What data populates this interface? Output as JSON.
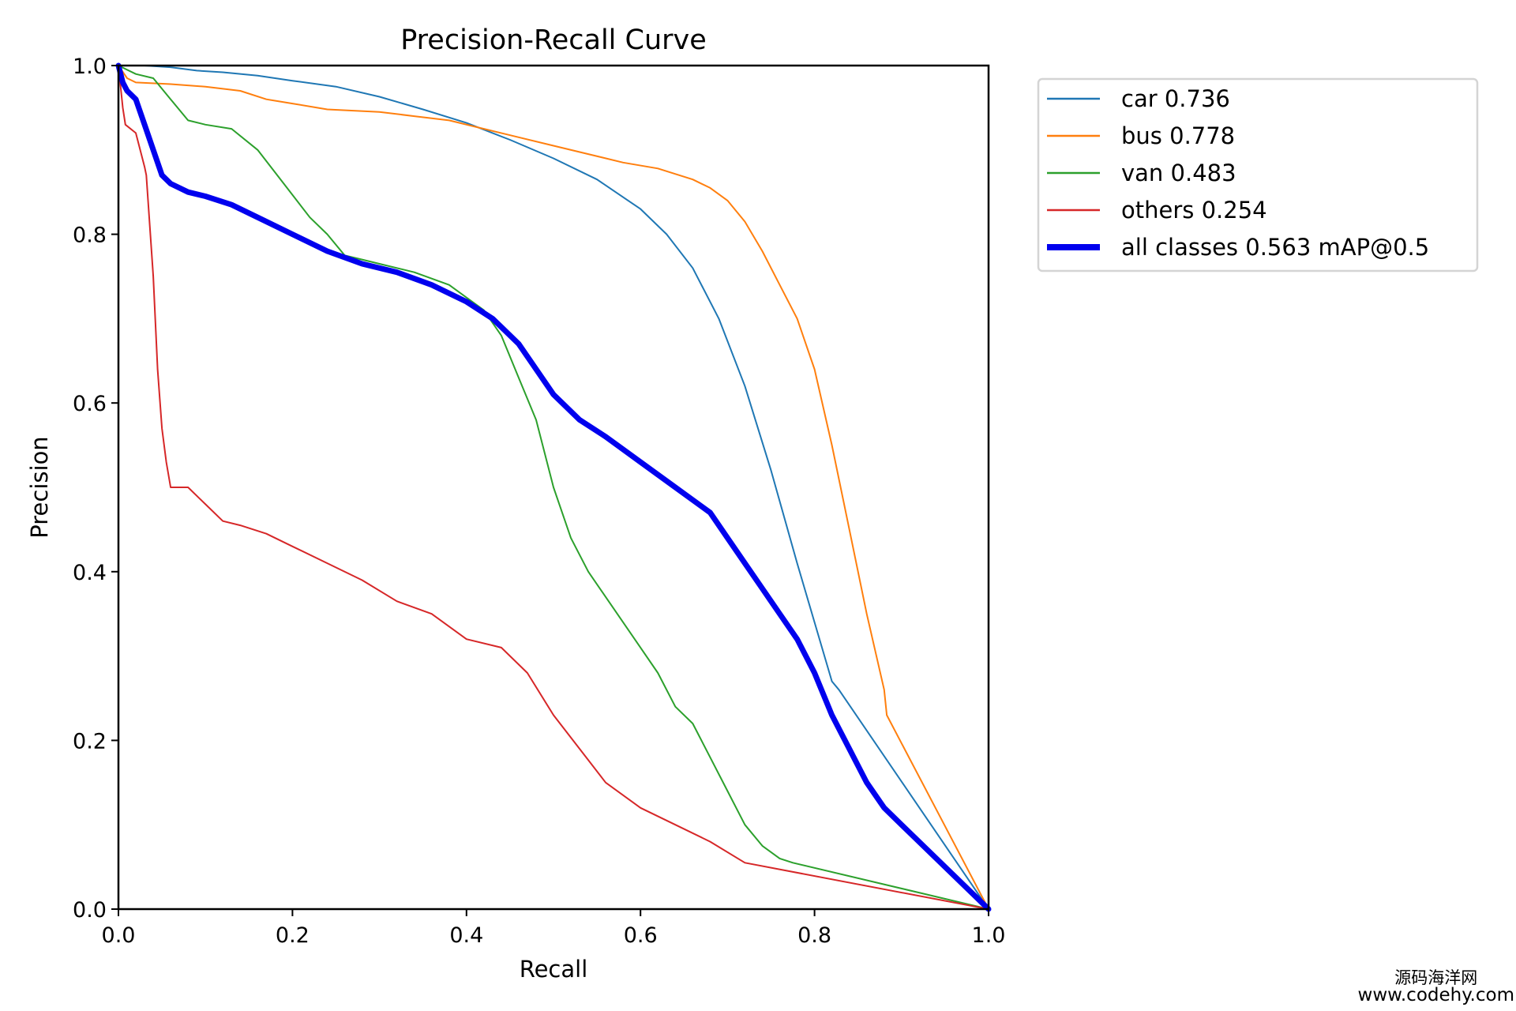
{
  "chart_data": {
    "type": "line",
    "title": "Precision-Recall Curve",
    "xlabel": "Recall",
    "ylabel": "Precision",
    "xlim": [
      0.0,
      1.0
    ],
    "ylim": [
      0.0,
      1.0
    ],
    "xticks": [
      "0.0",
      "0.2",
      "0.4",
      "0.6",
      "0.8",
      "1.0"
    ],
    "yticks": [
      "0.0",
      "0.2",
      "0.4",
      "0.6",
      "0.8",
      "1.0"
    ],
    "xtick_values": [
      0.0,
      0.2,
      0.4,
      0.6,
      0.8,
      1.0
    ],
    "ytick_values": [
      0.0,
      0.2,
      0.4,
      0.6,
      0.8,
      1.0
    ],
    "grid": false,
    "legend_position": "outside-top-right",
    "series": [
      {
        "name": "car 0.736",
        "color": "#1f77b4",
        "emphasis": false,
        "x": [
          0.0,
          0.03,
          0.06,
          0.09,
          0.12,
          0.16,
          0.2,
          0.25,
          0.3,
          0.35,
          0.4,
          0.45,
          0.5,
          0.55,
          0.6,
          0.63,
          0.66,
          0.69,
          0.72,
          0.75,
          0.78,
          0.8,
          0.82,
          0.828,
          1.0
        ],
        "y": [
          1.0,
          1.0,
          0.998,
          0.994,
          0.992,
          0.988,
          0.982,
          0.975,
          0.963,
          0.948,
          0.932,
          0.912,
          0.89,
          0.865,
          0.83,
          0.8,
          0.76,
          0.7,
          0.62,
          0.52,
          0.41,
          0.34,
          0.27,
          0.26,
          0.0
        ]
      },
      {
        "name": "bus 0.778",
        "color": "#ff7f0e",
        "emphasis": false,
        "x": [
          0.0,
          0.01,
          0.02,
          0.06,
          0.1,
          0.14,
          0.17,
          0.2,
          0.24,
          0.3,
          0.34,
          0.38,
          0.42,
          0.46,
          0.5,
          0.54,
          0.58,
          0.62,
          0.66,
          0.68,
          0.7,
          0.72,
          0.74,
          0.76,
          0.78,
          0.8,
          0.82,
          0.84,
          0.86,
          0.88,
          0.883,
          1.0
        ],
        "y": [
          1.0,
          0.985,
          0.98,
          0.978,
          0.975,
          0.97,
          0.96,
          0.955,
          0.948,
          0.945,
          0.94,
          0.935,
          0.925,
          0.915,
          0.905,
          0.895,
          0.885,
          0.878,
          0.865,
          0.855,
          0.84,
          0.815,
          0.78,
          0.74,
          0.7,
          0.64,
          0.55,
          0.45,
          0.35,
          0.26,
          0.23,
          0.0
        ]
      },
      {
        "name": "van 0.483",
        "color": "#2ca02c",
        "emphasis": false,
        "x": [
          0.0,
          0.02,
          0.04,
          0.06,
          0.08,
          0.1,
          0.13,
          0.16,
          0.19,
          0.22,
          0.24,
          0.26,
          0.28,
          0.3,
          0.34,
          0.38,
          0.42,
          0.44,
          0.46,
          0.48,
          0.5,
          0.52,
          0.54,
          0.56,
          0.58,
          0.6,
          0.62,
          0.64,
          0.66,
          0.68,
          0.7,
          0.72,
          0.74,
          0.76,
          0.775,
          1.0
        ],
        "y": [
          1.0,
          0.99,
          0.985,
          0.96,
          0.935,
          0.93,
          0.925,
          0.9,
          0.86,
          0.82,
          0.8,
          0.775,
          0.77,
          0.765,
          0.755,
          0.74,
          0.71,
          0.68,
          0.63,
          0.58,
          0.5,
          0.44,
          0.4,
          0.37,
          0.34,
          0.31,
          0.28,
          0.24,
          0.22,
          0.18,
          0.14,
          0.1,
          0.075,
          0.06,
          0.055,
          0.0
        ]
      },
      {
        "name": "others 0.254",
        "color": "#d62728",
        "emphasis": false,
        "x": [
          0.0,
          0.005,
          0.008,
          0.02,
          0.03,
          0.032,
          0.04,
          0.045,
          0.05,
          0.055,
          0.06,
          0.07,
          0.08,
          0.1,
          0.12,
          0.14,
          0.17,
          0.2,
          0.24,
          0.28,
          0.32,
          0.36,
          0.4,
          0.44,
          0.47,
          0.5,
          0.53,
          0.56,
          0.6,
          0.64,
          0.68,
          0.72,
          1.0
        ],
        "y": [
          1.0,
          0.95,
          0.93,
          0.92,
          0.88,
          0.87,
          0.75,
          0.64,
          0.57,
          0.53,
          0.5,
          0.5,
          0.5,
          0.48,
          0.46,
          0.455,
          0.445,
          0.43,
          0.41,
          0.39,
          0.365,
          0.35,
          0.32,
          0.31,
          0.28,
          0.23,
          0.19,
          0.15,
          0.12,
          0.1,
          0.08,
          0.055,
          0.0
        ]
      },
      {
        "name": "all classes 0.563 mAP@0.5",
        "color": "#0000ee",
        "emphasis": true,
        "x": [
          0.0,
          0.005,
          0.01,
          0.02,
          0.03,
          0.04,
          0.05,
          0.06,
          0.08,
          0.1,
          0.13,
          0.16,
          0.2,
          0.24,
          0.28,
          0.32,
          0.36,
          0.4,
          0.43,
          0.46,
          0.48,
          0.5,
          0.53,
          0.56,
          0.6,
          0.64,
          0.68,
          0.7,
          0.72,
          0.74,
          0.76,
          0.78,
          0.8,
          0.82,
          0.84,
          0.86,
          0.88,
          0.9,
          1.0
        ],
        "y": [
          1.0,
          0.98,
          0.97,
          0.96,
          0.93,
          0.9,
          0.87,
          0.86,
          0.85,
          0.845,
          0.835,
          0.82,
          0.8,
          0.78,
          0.765,
          0.755,
          0.74,
          0.72,
          0.7,
          0.67,
          0.64,
          0.61,
          0.58,
          0.56,
          0.53,
          0.5,
          0.47,
          0.44,
          0.41,
          0.38,
          0.35,
          0.32,
          0.28,
          0.23,
          0.19,
          0.15,
          0.12,
          0.1,
          0.0
        ]
      }
    ]
  },
  "watermark": {
    "line1": "源码海洋网",
    "line2": "www.codehy.com"
  }
}
